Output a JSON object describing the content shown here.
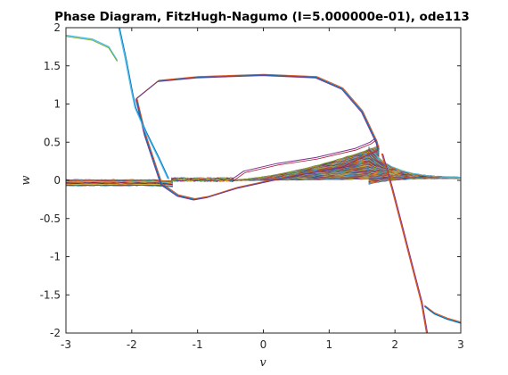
{
  "chart_data": {
    "type": "line",
    "title": "Phase Diagram, FitzHugh-Nagumo (I=5.000000e-01), ode113",
    "xlabel": "v",
    "ylabel": "w",
    "xlim": [
      -3,
      3
    ],
    "ylim": [
      -2,
      2
    ],
    "x_ticks": [
      "-3",
      "-2",
      "-1",
      "0",
      "1",
      "2",
      "3"
    ],
    "y_ticks": [
      "2",
      "1.5",
      "1",
      "0.5",
      "0",
      "-0.5",
      "-1",
      "-1.5",
      "-2"
    ],
    "grid": false,
    "legend": "none",
    "palette": [
      "#0072bd",
      "#d95319",
      "#edb120",
      "#7e2f8e",
      "#77ac30",
      "#4dbeee",
      "#a2142f"
    ],
    "limit_cycle": {
      "x": [
        -1.93,
        -1.6,
        -1.0,
        0.0,
        0.8,
        1.2,
        1.5,
        1.72,
        1.75,
        1.2,
        0.4,
        -0.4,
        -0.85,
        -1.05,
        -1.3,
        -1.55,
        -1.8,
        -1.93
      ],
      "y": [
        1.07,
        1.3,
        1.35,
        1.38,
        1.35,
        1.2,
        0.9,
        0.5,
        0.4,
        0.18,
        0.05,
        -0.1,
        -0.22,
        -0.25,
        -0.2,
        -0.05,
        0.6,
        1.07
      ]
    },
    "left_branch": {
      "x": [
        -2.2,
        -2.1,
        -2.0,
        -1.95,
        -1.8,
        -1.6,
        -1.45
      ],
      "y": [
        2.0,
        1.6,
        1.15,
        0.95,
        0.65,
        0.3,
        0.02
      ]
    },
    "right_branch": {
      "x": [
        1.8,
        1.95,
        2.1,
        2.25,
        2.4,
        2.48
      ],
      "y": [
        0.35,
        -0.1,
        -0.6,
        -1.1,
        -1.6,
        -2.0
      ]
    },
    "top_left_curve": {
      "x": [
        -3.0,
        -2.6,
        -2.35,
        -2.22
      ],
      "y": [
        1.9,
        1.85,
        1.75,
        1.57
      ]
    },
    "bottom_right_curve": {
      "x": [
        2.45,
        2.6,
        2.8,
        3.0
      ],
      "y": [
        -1.65,
        -1.75,
        -1.82,
        -1.87
      ]
    },
    "inner_orbit": {
      "x": [
        -0.5,
        -0.3,
        0.2,
        0.8,
        1.4,
        1.62,
        1.7
      ],
      "y": [
        0.0,
        0.12,
        0.22,
        0.3,
        0.42,
        0.5,
        0.55
      ]
    }
  }
}
